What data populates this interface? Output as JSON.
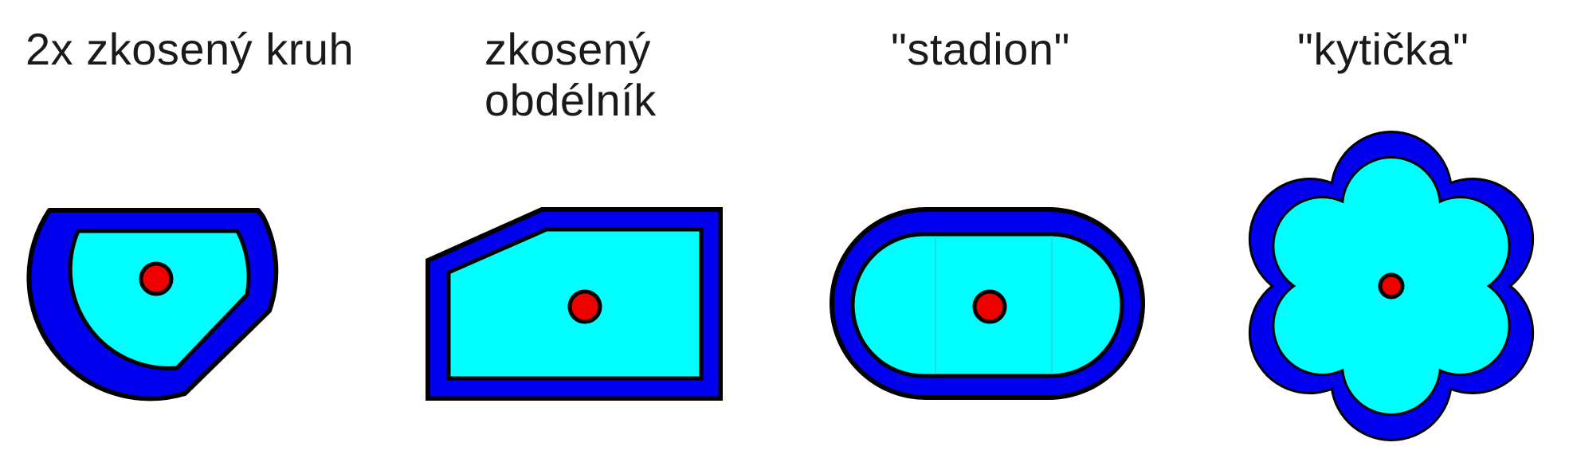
{
  "labels": {
    "shape_1": "2x zkosený kruh",
    "shape_2_line_1": "zkosený",
    "shape_2_line_2": "obdélník",
    "shape_3": "\"stadion\"",
    "shape_4": "\"kytička\""
  },
  "colors": {
    "outer_band": "#0000ee",
    "inner_fill": "#00ffff",
    "outline": "#000000",
    "center_dot": "#ee0000"
  }
}
